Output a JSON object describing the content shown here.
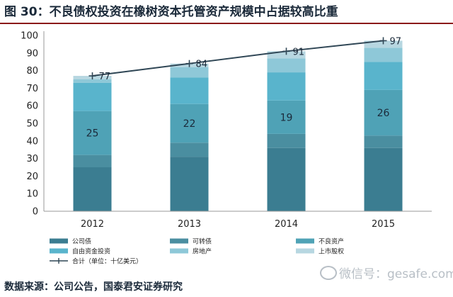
{
  "title": "图 30：不良债权投资在橡树资本托管资产规模中占据较高比重",
  "source": "数据来源：公司公告，国泰君安证券研究",
  "watermark": "微信号：gesafe.com",
  "colors": {
    "公司债": "#3b7d91",
    "可转债": "#4a8ea0",
    "不良资产": "#4fa2b6",
    "自由资金投资": "#59b4cc",
    "房地产": "#8ec8d8",
    "上市股权": "#b7d7e1",
    "合计": "#2f4655"
  },
  "chart_data": {
    "type": "bar",
    "stacked": true,
    "categories": [
      "2012",
      "2013",
      "2014",
      "2015"
    ],
    "ylim": [
      0,
      100
    ],
    "yticks": [
      0,
      10,
      20,
      30,
      40,
      50,
      60,
      70,
      80,
      90,
      100
    ],
    "series": [
      {
        "name": "公司债",
        "values": [
          25,
          31,
          36,
          36
        ]
      },
      {
        "name": "可转债",
        "values": [
          7,
          8,
          8,
          7
        ]
      },
      {
        "name": "不良资产",
        "values": [
          25,
          22,
          19,
          26
        ]
      },
      {
        "name": "自由资金投资",
        "values": [
          16,
          15,
          16,
          16
        ]
      },
      {
        "name": "房地产",
        "values": [
          2,
          6,
          8,
          8
        ]
      },
      {
        "name": "上市股权",
        "values": [
          2,
          2,
          4,
          4
        ]
      }
    ],
    "line": {
      "name": "合计（单位：十亿美元）",
      "values": [
        77,
        84,
        91,
        97
      ]
    },
    "bar_labels": {
      "series": "不良资产",
      "values": [
        "25",
        "22",
        "19",
        "26"
      ]
    },
    "legend": [
      "公司债",
      "可转债",
      "不良资产",
      "自由资金投资",
      "房地产",
      "上市股权",
      "合计（单位：十亿美元）"
    ],
    "legend_position": "bottom"
  }
}
